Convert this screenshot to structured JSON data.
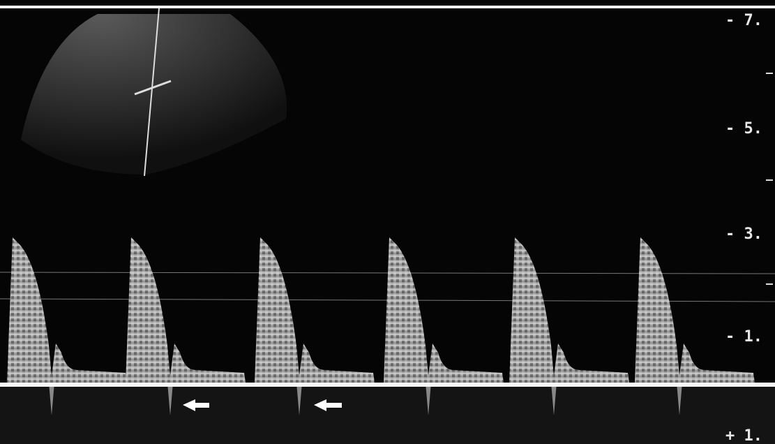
{
  "scale": {
    "labels": [
      "- 7.",
      "- 5.",
      "- 3.",
      "- 1.",
      "+ 1."
    ]
  }
}
